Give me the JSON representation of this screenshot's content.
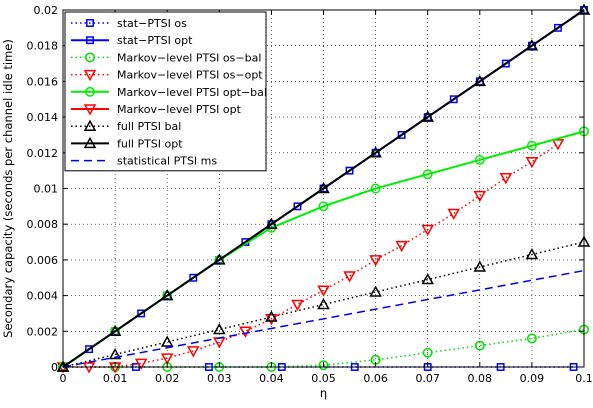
{
  "chart_data": {
    "type": "line",
    "title": "",
    "xlabel": "η",
    "ylabel": "Secondary capacity (seconds per channel idle time)",
    "xlim": [
      0,
      0.1
    ],
    "ylim": [
      0,
      0.02
    ],
    "x_ticks": [
      0,
      0.01,
      0.02,
      0.03,
      0.04,
      0.05,
      0.06,
      0.07,
      0.08,
      0.09,
      0.1
    ],
    "x_tick_labels": [
      "0",
      "0.01",
      "0.02",
      "0.03",
      "0.04",
      "0.05",
      "0.06",
      "0.07",
      "0.08",
      "0.09",
      "0.1"
    ],
    "y_ticks": [
      0,
      0.002,
      0.004,
      0.006,
      0.008,
      0.01,
      0.012,
      0.014,
      0.016,
      0.018,
      0.02
    ],
    "y_tick_labels": [
      "0",
      "0.002",
      "0.004",
      "0.006",
      "0.008",
      "0.01",
      "0.012",
      "0.014",
      "0.016",
      "0.018",
      "0.02"
    ],
    "grid": true,
    "legend_position": "top-left",
    "series": [
      {
        "name": "stat−PTSI os",
        "color": "#0000ff",
        "line": "dotted",
        "marker": "square",
        "marker_fill": "none",
        "x": [
          0,
          0.014,
          0.028,
          0.042,
          0.056,
          0.07,
          0.084,
          0.098
        ],
        "y": [
          0,
          0,
          0,
          0,
          0,
          0,
          0,
          0
        ]
      },
      {
        "name": "stat−PTSI opt",
        "color": "#0000ff",
        "line": "solid",
        "marker": "square",
        "marker_fill": "none",
        "x": [
          0,
          0.005,
          0.01,
          0.015,
          0.02,
          0.025,
          0.03,
          0.035,
          0.04,
          0.045,
          0.05,
          0.055,
          0.06,
          0.065,
          0.07,
          0.075,
          0.08,
          0.085,
          0.09,
          0.095,
          0.1
        ],
        "y": [
          0,
          0.001,
          0.002,
          0.003,
          0.004,
          0.005,
          0.006,
          0.007,
          0.008,
          0.009,
          0.01,
          0.011,
          0.012,
          0.013,
          0.014,
          0.015,
          0.016,
          0.017,
          0.018,
          0.019,
          0.02
        ]
      },
      {
        "name": "Markov−level PTSI os−bal",
        "color": "#00dd00",
        "line": "dotted",
        "marker": "circle",
        "marker_fill": "none",
        "x": [
          0,
          0.01,
          0.02,
          0.03,
          0.04,
          0.05,
          0.06,
          0.07,
          0.08,
          0.09,
          0.1
        ],
        "y": [
          0,
          0,
          0,
          0,
          0,
          0.0001,
          0.0004,
          0.0008,
          0.0012,
          0.0016,
          0.0021
        ]
      },
      {
        "name": "Markov−level PTSI os−opt",
        "color": "#ff0000",
        "line": "dotted",
        "marker": "triangle-down",
        "marker_fill": "none",
        "x": [
          0,
          0.005,
          0.01,
          0.015,
          0.02,
          0.025,
          0.03,
          0.035,
          0.04,
          0.045,
          0.05,
          0.055,
          0.06,
          0.065,
          0.07,
          0.075,
          0.08,
          0.085,
          0.09,
          0.095
        ],
        "y": [
          0,
          0,
          0,
          0.0002,
          0.0005,
          0.0009,
          0.0014,
          0.002,
          0.0027,
          0.0035,
          0.0043,
          0.0051,
          0.006,
          0.0068,
          0.0077,
          0.0086,
          0.0096,
          0.0106,
          0.0115,
          0.0125
        ]
      },
      {
        "name": "Markov−level PTSI opt−bal",
        "color": "#00ee00",
        "line": "solid",
        "marker": "circle",
        "marker_fill": "none",
        "x": [
          0,
          0.01,
          0.02,
          0.03,
          0.04,
          0.05,
          0.06,
          0.07,
          0.08,
          0.09,
          0.1
        ],
        "y": [
          0,
          0.002,
          0.004,
          0.006,
          0.0078,
          0.009,
          0.01,
          0.0108,
          0.0116,
          0.0124,
          0.0132
        ]
      },
      {
        "name": "Markov−level PTSI opt",
        "color": "#ff0000",
        "line": "solid",
        "marker": "triangle-down",
        "marker_fill": "none",
        "x": [],
        "y": []
      },
      {
        "name": "full PTSI bal",
        "color": "#000000",
        "line": "dotted",
        "marker": "triangle-up",
        "marker_fill": "none",
        "x": [
          0,
          0.01,
          0.02,
          0.03,
          0.04,
          0.05,
          0.06,
          0.07,
          0.08,
          0.09,
          0.1
        ],
        "y": [
          0,
          0.0007,
          0.0014,
          0.0021,
          0.0028,
          0.0035,
          0.0042,
          0.0049,
          0.0056,
          0.0063,
          0.007
        ]
      },
      {
        "name": "full PTSI opt",
        "color": "#000000",
        "line": "solid",
        "marker": "triangle-up",
        "marker_fill": "none",
        "x": [
          0,
          0.01,
          0.02,
          0.03,
          0.04,
          0.05,
          0.06,
          0.07,
          0.08,
          0.09,
          0.1
        ],
        "y": [
          0,
          0.002,
          0.004,
          0.006,
          0.008,
          0.01,
          0.012,
          0.014,
          0.016,
          0.018,
          0.02
        ]
      },
      {
        "name": "statistical PTSI ms",
        "color": "#0000ee",
        "line": "dashed",
        "marker": "none",
        "marker_fill": "none",
        "x": [
          0,
          0.1
        ],
        "y": [
          0,
          0.0054
        ]
      }
    ]
  }
}
